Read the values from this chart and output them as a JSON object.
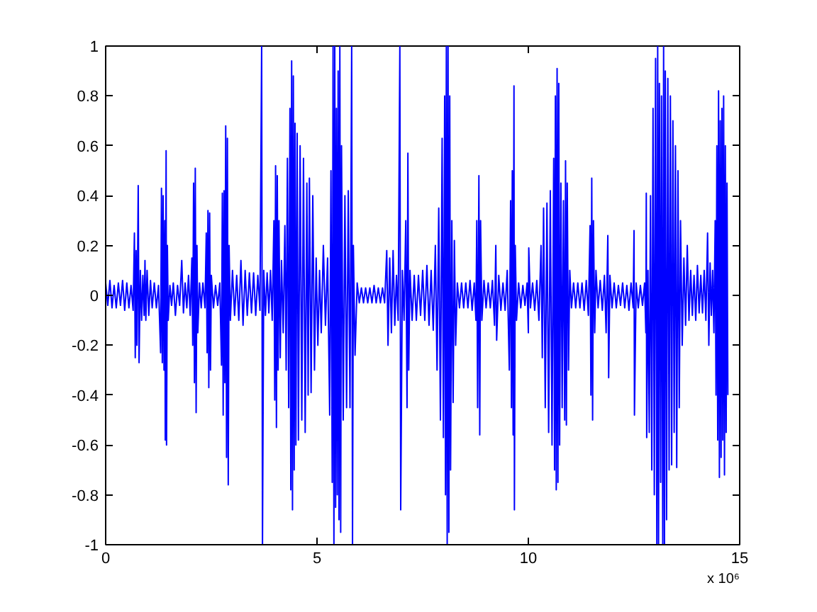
{
  "chart_data": {
    "type": "line",
    "xlim": [
      0,
      15
    ],
    "xticks": [
      0,
      5,
      10,
      15
    ],
    "ylim": [
      -1,
      1
    ],
    "yticks": [
      -1,
      -0.8,
      -0.6,
      -0.4,
      -0.2,
      0,
      0.2,
      0.4,
      0.6,
      0.8,
      1
    ],
    "grid": false,
    "marker": "none",
    "line_style": "solid",
    "annotations": [
      "x 10⁶"
    ],
    "series": [
      {
        "color": "#0000ff",
        "x": [
          0.0,
          0.05,
          0.1,
          0.15,
          0.2,
          0.25,
          0.3,
          0.35,
          0.4,
          0.45,
          0.5,
          0.55,
          0.6,
          0.65,
          0.68,
          0.7,
          0.72,
          0.74,
          0.77,
          0.79,
          0.82,
          0.85,
          0.88,
          0.91,
          0.93,
          0.95,
          0.98,
          1.02,
          1.06,
          1.1,
          1.15,
          1.2,
          1.25,
          1.3,
          1.32,
          1.34,
          1.36,
          1.38,
          1.4,
          1.41,
          1.43,
          1.44,
          1.46,
          1.48,
          1.52,
          1.56,
          1.6,
          1.65,
          1.7,
          1.75,
          1.8,
          1.84,
          1.88,
          1.92,
          1.96,
          2.0,
          2.04,
          2.06,
          2.08,
          2.1,
          2.12,
          2.14,
          2.16,
          2.18,
          2.22,
          2.26,
          2.3,
          2.35,
          2.38,
          2.4,
          2.42,
          2.44,
          2.46,
          2.48,
          2.5,
          2.55,
          2.6,
          2.65,
          2.7,
          2.74,
          2.76,
          2.78,
          2.8,
          2.82,
          2.84,
          2.86,
          2.88,
          2.9,
          2.92,
          2.95,
          3.0,
          3.05,
          3.1,
          3.15,
          3.2,
          3.25,
          3.3,
          3.35,
          3.4,
          3.45,
          3.5,
          3.55,
          3.6,
          3.65,
          3.69,
          3.71,
          3.74,
          3.78,
          3.82,
          3.86,
          3.9,
          3.94,
          3.98,
          4.0,
          4.02,
          4.04,
          4.06,
          4.08,
          4.1,
          4.13,
          4.16,
          4.2,
          4.24,
          4.27,
          4.3,
          4.33,
          4.36,
          4.38,
          4.4,
          4.42,
          4.44,
          4.46,
          4.48,
          4.5,
          4.53,
          4.56,
          4.6,
          4.64,
          4.68,
          4.72,
          4.76,
          4.79,
          4.82,
          4.86,
          4.9,
          4.94,
          4.98,
          5.02,
          5.06,
          5.1,
          5.15,
          5.2,
          5.25,
          5.3,
          5.33,
          5.36,
          5.38,
          5.4,
          5.42,
          5.44,
          5.46,
          5.48,
          5.5,
          5.52,
          5.54,
          5.56,
          5.58,
          5.62,
          5.66,
          5.7,
          5.74,
          5.78,
          5.82,
          5.84,
          5.86,
          5.9,
          5.95,
          6.0,
          6.05,
          6.1,
          6.15,
          6.2,
          6.25,
          6.3,
          6.35,
          6.4,
          6.45,
          6.5,
          6.55,
          6.6,
          6.65,
          6.68,
          6.72,
          6.76,
          6.8,
          6.84,
          6.88,
          6.92,
          6.96,
          6.98,
          7.02,
          7.06,
          7.1,
          7.13,
          7.15,
          7.17,
          7.2,
          7.25,
          7.3,
          7.35,
          7.4,
          7.45,
          7.5,
          7.55,
          7.6,
          7.65,
          7.7,
          7.75,
          7.8,
          7.84,
          7.88,
          7.92,
          7.96,
          7.99,
          8.02,
          8.04,
          8.06,
          8.08,
          8.1,
          8.12,
          8.14,
          8.16,
          8.19,
          8.22,
          8.25,
          8.28,
          8.32,
          8.37,
          8.42,
          8.47,
          8.52,
          8.57,
          8.62,
          8.67,
          8.72,
          8.76,
          8.78,
          8.8,
          8.83,
          8.85,
          8.87,
          8.9,
          8.95,
          9.0,
          9.05,
          9.1,
          9.15,
          9.2,
          9.23,
          9.25,
          9.3,
          9.35,
          9.4,
          9.45,
          9.5,
          9.55,
          9.58,
          9.6,
          9.62,
          9.64,
          9.66,
          9.67,
          9.69,
          9.72,
          9.77,
          9.82,
          9.87,
          9.92,
          9.97,
          10.0,
          10.01,
          10.05,
          10.1,
          10.15,
          10.2,
          10.25,
          10.3,
          10.33,
          10.36,
          10.4,
          10.44,
          10.48,
          10.52,
          10.56,
          10.6,
          10.62,
          10.64,
          10.66,
          10.68,
          10.7,
          10.72,
          10.74,
          10.77,
          10.8,
          10.83,
          10.86,
          10.88,
          10.9,
          10.92,
          10.95,
          10.98,
          11.02,
          11.07,
          11.12,
          11.17,
          11.22,
          11.27,
          11.32,
          11.37,
          11.42,
          11.46,
          11.48,
          11.5,
          11.52,
          11.54,
          11.57,
          11.6,
          11.65,
          11.7,
          11.75,
          11.8,
          11.84,
          11.88,
          11.9,
          11.93,
          11.98,
          12.03,
          12.08,
          12.13,
          12.18,
          12.23,
          12.28,
          12.33,
          12.38,
          12.43,
          12.48,
          12.5,
          12.51,
          12.55,
          12.6,
          12.65,
          12.7,
          12.75,
          12.78,
          12.79,
          12.8,
          12.83,
          12.86,
          12.89,
          12.92,
          12.95,
          12.98,
          13.01,
          13.04,
          13.06,
          13.08,
          13.1,
          13.13,
          13.15,
          13.18,
          13.2,
          13.22,
          13.24,
          13.27,
          13.3,
          13.33,
          13.36,
          13.39,
          13.42,
          13.45,
          13.48,
          13.51,
          13.54,
          13.57,
          13.6,
          13.64,
          13.68,
          13.72,
          13.76,
          13.8,
          13.84,
          13.88,
          13.92,
          13.96,
          14.0,
          14.04,
          14.08,
          14.12,
          14.16,
          14.2,
          14.24,
          14.27,
          14.3,
          14.33,
          14.36,
          14.39,
          14.42,
          14.44,
          14.46,
          14.48,
          14.5,
          14.52,
          14.54,
          14.56,
          14.58,
          14.6,
          14.62,
          14.64,
          14.66,
          14.68,
          14.7,
          14.72
        ],
        "values": [
          0.05,
          -0.04,
          0.06,
          -0.05,
          0.04,
          -0.05,
          0.05,
          -0.04,
          0.06,
          -0.06,
          0.05,
          -0.05,
          0.04,
          -0.06,
          0.25,
          -0.25,
          0.18,
          -0.2,
          0.44,
          -0.27,
          0.1,
          -0.1,
          0.08,
          -0.08,
          0.14,
          -0.1,
          0.1,
          -0.08,
          0.06,
          -0.05,
          0.05,
          -0.05,
          0.04,
          -0.23,
          0.43,
          -0.27,
          0.4,
          -0.3,
          0.3,
          -0.58,
          0.58,
          -0.6,
          0.2,
          -0.1,
          0.04,
          -0.04,
          0.05,
          -0.08,
          0.04,
          -0.04,
          0.14,
          -0.07,
          0.05,
          -0.05,
          0.08,
          -0.08,
          0.15,
          -0.2,
          0.45,
          -0.35,
          0.51,
          -0.47,
          0.2,
          -0.15,
          0.05,
          -0.05,
          0.05,
          -0.05,
          0.25,
          -0.23,
          0.34,
          -0.37,
          0.33,
          -0.3,
          0.08,
          -0.05,
          0.04,
          -0.04,
          0.05,
          -0.28,
          0.41,
          -0.48,
          0.42,
          -0.35,
          0.68,
          -0.65,
          0.63,
          -0.76,
          0.2,
          -0.1,
          0.1,
          -0.08,
          0.08,
          -0.1,
          0.14,
          -0.12,
          0.1,
          -0.08,
          0.09,
          -0.07,
          0.09,
          -0.08,
          0.08,
          -0.06,
          1.0,
          -1.0,
          0.1,
          -0.08,
          0.09,
          -0.07,
          0.1,
          -0.1,
          0.3,
          -0.42,
          0.52,
          -0.53,
          0.48,
          -0.3,
          0.3,
          -0.25,
          0.14,
          -0.15,
          0.28,
          -0.3,
          0.55,
          -0.45,
          0.75,
          -0.78,
          0.94,
          -0.86,
          0.88,
          -0.7,
          0.69,
          -0.6,
          0.65,
          -0.58,
          0.6,
          -0.5,
          0.55,
          -0.55,
          0.45,
          -0.4,
          0.47,
          -0.39,
          0.4,
          -0.3,
          0.15,
          -0.2,
          0.1,
          -0.15,
          0.2,
          -0.12,
          0.15,
          -0.48,
          0.5,
          -0.75,
          1.0,
          -1.0,
          1.0,
          -0.85,
          0.75,
          -0.8,
          0.9,
          -0.9,
          1.0,
          -0.95,
          0.6,
          -0.5,
          0.4,
          -0.45,
          0.42,
          -0.45,
          1.0,
          -1.0,
          0.2,
          -0.24,
          0.05,
          -0.03,
          0.03,
          -0.03,
          0.03,
          -0.03,
          0.03,
          -0.03,
          0.04,
          -0.03,
          0.03,
          -0.03,
          0.03,
          -0.03,
          0.18,
          -0.2,
          0.15,
          -0.15,
          0.18,
          -0.12,
          0.08,
          -0.1,
          1.0,
          -0.86,
          0.1,
          -0.1,
          0.3,
          -0.45,
          0.57,
          -0.3,
          0.1,
          -0.1,
          0.08,
          -0.1,
          0.08,
          -0.08,
          0.1,
          -0.1,
          0.12,
          -0.12,
          0.1,
          -0.14,
          0.2,
          -0.3,
          0.35,
          -0.5,
          0.63,
          -0.57,
          0.8,
          -0.8,
          1.0,
          -1.0,
          1.0,
          -0.95,
          0.8,
          -0.7,
          0.3,
          -0.43,
          0.22,
          -0.2,
          0.05,
          -0.05,
          0.05,
          -0.05,
          0.05,
          -0.05,
          0.06,
          -0.06,
          0.05,
          -0.1,
          0.3,
          -0.45,
          0.48,
          -0.56,
          0.3,
          -0.1,
          0.06,
          -0.05,
          0.05,
          -0.05,
          0.06,
          -0.12,
          0.2,
          -0.18,
          0.08,
          -0.06,
          0.05,
          -0.06,
          0.1,
          -0.3,
          0.38,
          -0.45,
          0.5,
          -0.56,
          0.84,
          -0.86,
          0.2,
          -0.1,
          0.05,
          -0.05,
          0.04,
          -0.04,
          0.05,
          -0.15,
          0.19,
          -0.05,
          0.05,
          -0.06,
          0.06,
          -0.1,
          0.2,
          -0.25,
          0.35,
          -0.45,
          0.37,
          -0.55,
          0.42,
          -0.6,
          0.55,
          -0.7,
          0.8,
          -0.78,
          0.91,
          -0.75,
          0.85,
          -0.6,
          0.45,
          -0.45,
          0.38,
          -0.5,
          0.54,
          -0.52,
          0.45,
          -0.3,
          0.1,
          -0.05,
          0.05,
          -0.05,
          0.05,
          -0.05,
          0.05,
          -0.06,
          0.06,
          -0.08,
          0.28,
          -0.4,
          0.47,
          -0.5,
          0.3,
          -0.15,
          0.1,
          -0.05,
          0.06,
          -0.06,
          0.08,
          -0.15,
          0.24,
          -0.33,
          0.08,
          -0.05,
          0.05,
          -0.05,
          0.04,
          -0.04,
          0.05,
          -0.05,
          0.04,
          -0.06,
          0.05,
          -0.05,
          0.26,
          -0.48,
          0.05,
          -0.05,
          0.04,
          -0.04,
          0.05,
          -0.15,
          0.41,
          -0.57,
          0.1,
          -0.55,
          0.4,
          -0.7,
          0.75,
          -0.8,
          0.95,
          -1.0,
          1.0,
          -1.0,
          0.85,
          -0.75,
          0.8,
          -1.0,
          1.0,
          -1.0,
          0.9,
          -0.9,
          0.87,
          -0.7,
          0.8,
          -0.68,
          0.7,
          -0.55,
          0.6,
          -0.69,
          0.5,
          -0.45,
          0.3,
          -0.2,
          0.15,
          -0.12,
          0.2,
          -0.1,
          0.1,
          -0.08,
          0.08,
          -0.1,
          0.12,
          -0.07,
          0.08,
          -0.07,
          0.1,
          -0.1,
          0.25,
          -0.2,
          0.13,
          -0.08,
          0.1,
          -0.15,
          0.3,
          -0.4,
          0.6,
          -0.58,
          0.82,
          -0.73,
          0.7,
          -0.65,
          0.75,
          -0.58,
          0.8,
          -0.72,
          0.6,
          -0.55,
          0.45,
          -0.4
        ]
      }
    ]
  }
}
